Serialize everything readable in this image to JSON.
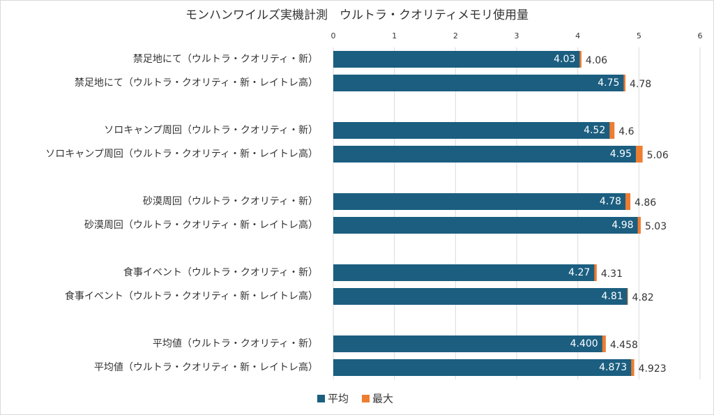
{
  "chart_data": {
    "type": "bar",
    "orientation": "horizontal",
    "title": "モンハンワイルズ実機計測　ウルトラ・クオリティメモリ使用量",
    "categories": [
      "禁足地にて（ウルトラ・クオリティ・新）",
      "禁足地にて（ウルトラ・クオリティ・新・レイトレ高）",
      null,
      "ソロキャンプ周回（ウルトラ・クオリティ・新）",
      "ソロキャンプ周回（ウルトラ・クオリティ・新・レイトレ高）",
      null,
      "砂漠周回（ウルトラ・クオリティ・新）",
      "砂漠周回（ウルトラ・クオリティ・新・レイトレ高）",
      null,
      "食事イベント（ウルトラ・クオリティ・新）",
      "食事イベント（ウルトラ・クオリティ・新・レイトレ高）",
      null,
      "平均値（ウルトラ・クオリティ・新）",
      "平均値（ウルトラ・クオリティ・新・レイトレ高）"
    ],
    "series": [
      {
        "name": "平均",
        "color": "#1b5e80",
        "values": [
          4.03,
          4.75,
          null,
          4.52,
          4.95,
          null,
          4.78,
          4.98,
          null,
          4.27,
          4.81,
          null,
          4.4,
          4.873
        ],
        "value_labels": [
          "4.03",
          "4.75",
          null,
          "4.52",
          "4.95",
          null,
          "4.78",
          "4.98",
          null,
          "4.27",
          "4.81",
          null,
          "4.400",
          "4.873"
        ]
      },
      {
        "name": "最大",
        "color": "#ed7d31",
        "values": [
          4.06,
          4.78,
          null,
          4.6,
          5.06,
          null,
          4.86,
          5.03,
          null,
          4.31,
          4.82,
          null,
          4.458,
          4.923
        ],
        "value_labels": [
          "4.06",
          "4.78",
          null,
          "4.6",
          "5.06",
          null,
          "4.86",
          "5.03",
          null,
          "4.31",
          "4.82",
          null,
          "4.458",
          "4.923"
        ]
      }
    ],
    "xlim": [
      0,
      6
    ],
    "xticks": [
      0,
      1,
      2,
      3,
      4,
      5,
      6
    ],
    "grid": true,
    "legend": "bottom"
  }
}
